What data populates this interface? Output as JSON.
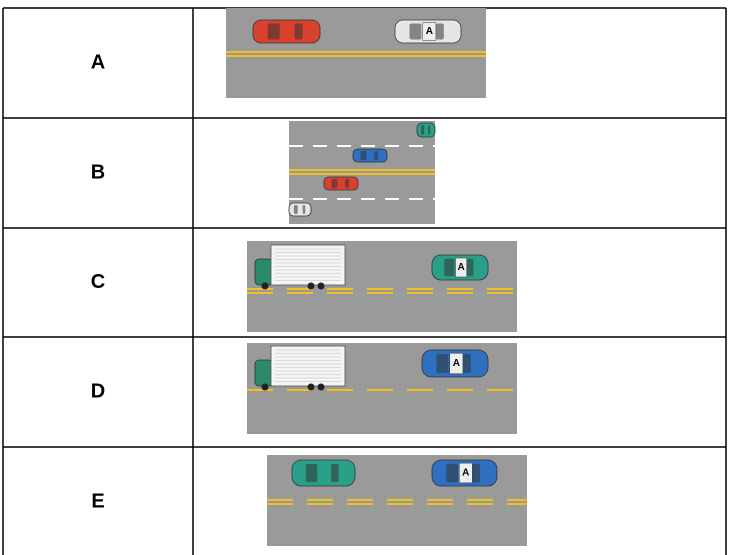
{
  "table": {
    "rows": [
      {
        "label": "A",
        "car_label": "A"
      },
      {
        "label": "B"
      },
      {
        "label": "C",
        "car_label": "A"
      },
      {
        "label": "D",
        "car_label": "A"
      },
      {
        "label": "E",
        "car_label": "A"
      }
    ]
  }
}
